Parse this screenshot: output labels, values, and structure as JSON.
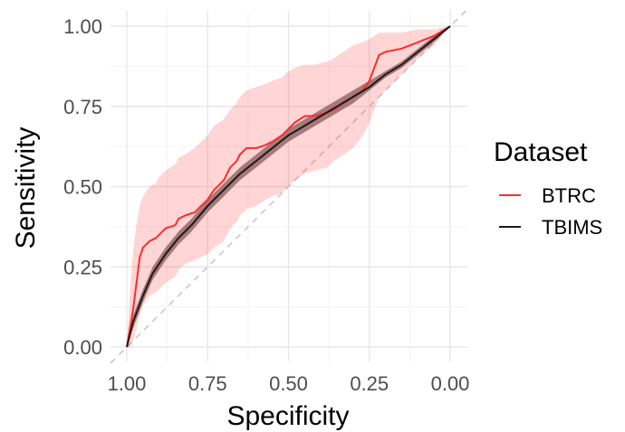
{
  "chart_data": {
    "type": "line",
    "title": "",
    "xlabel": "Specificity",
    "ylabel": "Sensitivity",
    "xlim": [
      1.0,
      0.0
    ],
    "ylim": [
      0.0,
      1.0
    ],
    "x_reversed": true,
    "grid": true,
    "x_ticks": [
      1.0,
      0.75,
      0.5,
      0.25,
      0.0
    ],
    "x_tick_labels": [
      "1.00",
      "0.75",
      "0.50",
      "0.25",
      "0.00"
    ],
    "y_ticks": [
      0.0,
      0.25,
      0.5,
      0.75,
      1.0
    ],
    "y_tick_labels": [
      "0.00",
      "0.25",
      "0.50",
      "0.75",
      "1.00"
    ],
    "reference_line": {
      "from": [
        1.0,
        0.0
      ],
      "to": [
        0.0,
        1.0
      ],
      "style": "dashed",
      "color": "#c8c8c8"
    },
    "legend": {
      "title": "Dataset",
      "position": "right"
    },
    "series": [
      {
        "name": "BTRC",
        "color": "#ff2b2b",
        "x": [
          1.0,
          0.99,
          0.98,
          0.97,
          0.96,
          0.95,
          0.93,
          0.91,
          0.9,
          0.88,
          0.85,
          0.84,
          0.82,
          0.79,
          0.77,
          0.75,
          0.73,
          0.7,
          0.68,
          0.66,
          0.65,
          0.63,
          0.6,
          0.57,
          0.55,
          0.52,
          0.5,
          0.48,
          0.45,
          0.42,
          0.38,
          0.36,
          0.33,
          0.3,
          0.27,
          0.25,
          0.22,
          0.2,
          0.15,
          0.1,
          0.05,
          0.0
        ],
        "y": [
          0.0,
          0.06,
          0.12,
          0.2,
          0.28,
          0.31,
          0.33,
          0.34,
          0.35,
          0.37,
          0.38,
          0.4,
          0.41,
          0.42,
          0.44,
          0.46,
          0.49,
          0.52,
          0.56,
          0.58,
          0.6,
          0.62,
          0.62,
          0.63,
          0.64,
          0.66,
          0.68,
          0.7,
          0.72,
          0.72,
          0.73,
          0.74,
          0.76,
          0.78,
          0.8,
          0.83,
          0.91,
          0.92,
          0.93,
          0.95,
          0.97,
          1.0
        ],
        "ci_lower": [
          0.0,
          0.0,
          0.02,
          0.06,
          0.1,
          0.13,
          0.16,
          0.17,
          0.18,
          0.2,
          0.22,
          0.24,
          0.26,
          0.27,
          0.28,
          0.29,
          0.31,
          0.33,
          0.37,
          0.39,
          0.41,
          0.43,
          0.44,
          0.46,
          0.47,
          0.48,
          0.5,
          0.52,
          0.54,
          0.55,
          0.56,
          0.58,
          0.6,
          0.62,
          0.66,
          0.7,
          0.78,
          0.8,
          0.85,
          0.9,
          0.94,
          1.0
        ],
        "ci_upper": [
          0.0,
          0.18,
          0.3,
          0.38,
          0.44,
          0.47,
          0.5,
          0.51,
          0.53,
          0.55,
          0.57,
          0.59,
          0.6,
          0.62,
          0.64,
          0.66,
          0.69,
          0.71,
          0.74,
          0.76,
          0.78,
          0.8,
          0.81,
          0.82,
          0.83,
          0.84,
          0.86,
          0.87,
          0.88,
          0.88,
          0.89,
          0.9,
          0.92,
          0.94,
          0.95,
          0.96,
          0.98,
          0.98,
          0.98,
          0.99,
          0.99,
          1.0
        ]
      },
      {
        "name": "TBIMS",
        "color": "#1a1a1a",
        "band_color": "#8a5a5a",
        "x": [
          1.0,
          0.98,
          0.95,
          0.92,
          0.88,
          0.84,
          0.8,
          0.75,
          0.7,
          0.65,
          0.6,
          0.55,
          0.5,
          0.45,
          0.4,
          0.35,
          0.3,
          0.25,
          0.2,
          0.15,
          0.1,
          0.05,
          0.0
        ],
        "y": [
          0.0,
          0.08,
          0.16,
          0.23,
          0.29,
          0.34,
          0.38,
          0.44,
          0.49,
          0.54,
          0.58,
          0.62,
          0.66,
          0.69,
          0.72,
          0.75,
          0.78,
          0.81,
          0.85,
          0.88,
          0.92,
          0.96,
          1.0
        ],
        "ci_lower": [
          0.0,
          0.06,
          0.14,
          0.21,
          0.27,
          0.32,
          0.36,
          0.42,
          0.47,
          0.52,
          0.56,
          0.6,
          0.64,
          0.67,
          0.7,
          0.73,
          0.76,
          0.8,
          0.84,
          0.87,
          0.91,
          0.95,
          1.0
        ],
        "ci_upper": [
          0.0,
          0.1,
          0.18,
          0.25,
          0.31,
          0.36,
          0.4,
          0.46,
          0.51,
          0.56,
          0.6,
          0.64,
          0.68,
          0.71,
          0.74,
          0.77,
          0.8,
          0.83,
          0.86,
          0.89,
          0.93,
          0.97,
          1.0
        ]
      }
    ]
  }
}
